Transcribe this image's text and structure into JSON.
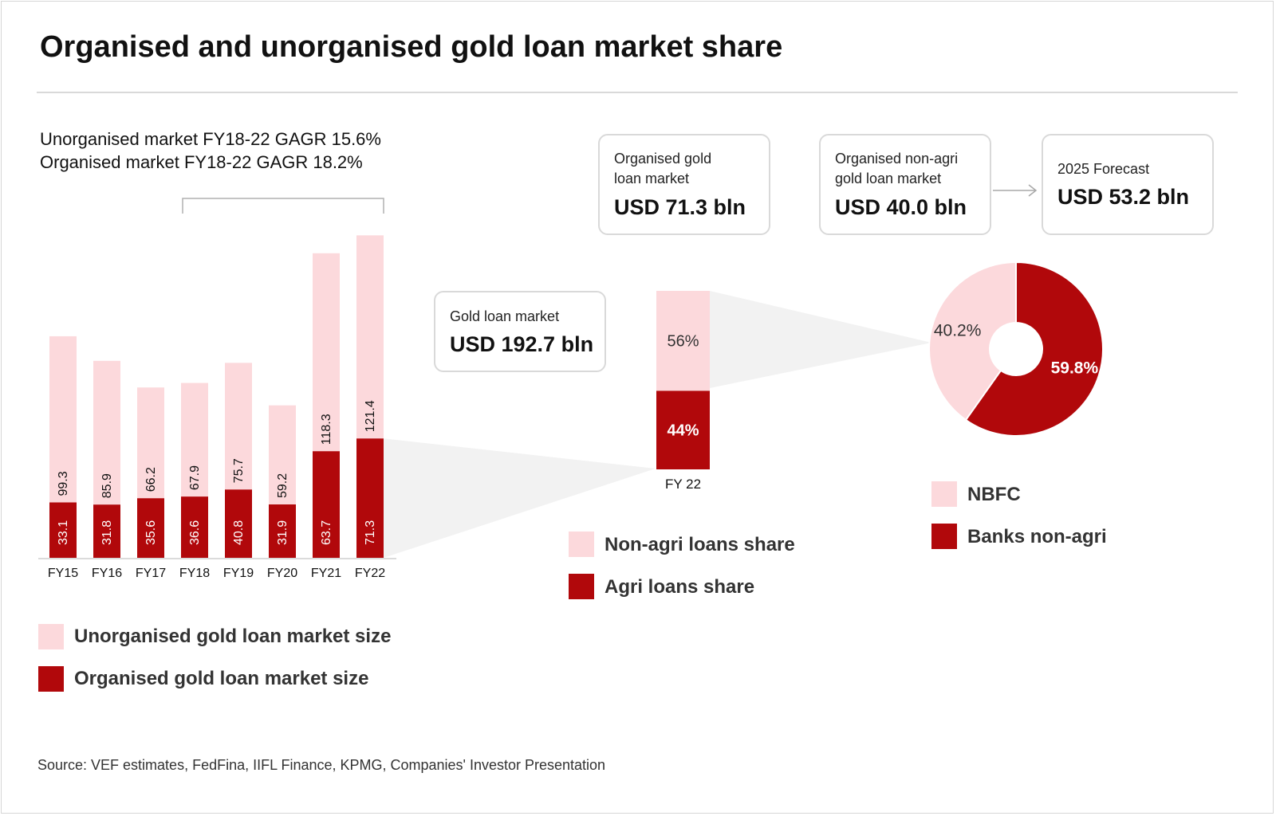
{
  "title": "Organised and unorganised gold loan market share",
  "cagr_lines": [
    "Unorganised market FY18-22 GAGR 15.6%",
    "Organised market FY18-22 GAGR  18.2%"
  ],
  "boxes": {
    "gold_loan_market": {
      "label": "Gold loan market",
      "value": "USD 192.7 bln"
    },
    "organised_market": {
      "label_lines": [
        "Organised gold",
        "loan market"
      ],
      "value": "USD 71.3 bln"
    },
    "organised_nonagri": {
      "label_lines": [
        "Organised non-agri",
        "gold loan market"
      ],
      "value": "USD 40.0 bln"
    },
    "forecast": {
      "label": "2025 Forecast",
      "value": "USD 53.2 bln"
    }
  },
  "legends": {
    "bars": [
      "Unorganised gold loan market size",
      "Organised gold loan market size"
    ],
    "share": [
      "Non-agri loans share",
      "Agri loans share"
    ],
    "donut": [
      "NBFC",
      "Banks non-agri"
    ]
  },
  "source": "Source: VEF estimates, FedFina, IIFL Finance, KPMG, Companies' Investor Presentation",
  "colors": {
    "light": "#fcd9dc",
    "dark": "#b1080b",
    "funnel": "#f2f2f2",
    "border": "#d9d9d9"
  },
  "chart_data": [
    {
      "type": "bar",
      "stacked": true,
      "categories": [
        "FY15",
        "FY16",
        "FY17",
        "FY18",
        "FY19",
        "FY20",
        "FY21",
        "FY22"
      ],
      "series": [
        {
          "name": "Organised gold loan market size",
          "values": [
            33.1,
            31.8,
            35.6,
            36.6,
            40.8,
            31.9,
            63.7,
            71.3
          ],
          "color": "#b1080b"
        },
        {
          "name": "Unorganised gold loan market size",
          "values": [
            99.3,
            85.9,
            66.2,
            67.9,
            75.7,
            59.2,
            118.3,
            121.4
          ],
          "color": "#fcd9dc"
        }
      ],
      "bracket": [
        "FY18",
        "FY22"
      ]
    },
    {
      "type": "bar",
      "stacked": true,
      "categories": [
        "FY 22"
      ],
      "series": [
        {
          "name": "Agri loans share",
          "values": [
            44
          ],
          "label": "44%",
          "color": "#b1080b"
        },
        {
          "name": "Non-agri loans share",
          "values": [
            56
          ],
          "label": "56%",
          "color": "#fcd9dc"
        }
      ]
    },
    {
      "type": "pie",
      "donut": true,
      "slices": [
        {
          "name": "Banks non-agri",
          "value": 59.8,
          "label": "59.8%",
          "color": "#b1080b"
        },
        {
          "name": "NBFC",
          "value": 40.2,
          "label": "40.2%",
          "color": "#fcd9dc"
        }
      ]
    }
  ]
}
